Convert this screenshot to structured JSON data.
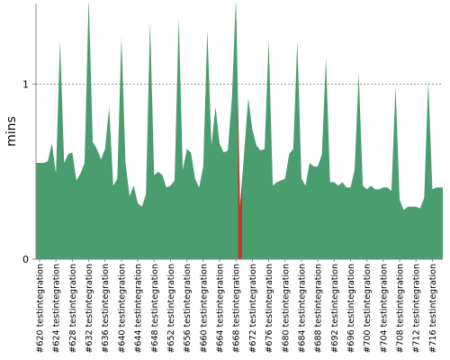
{
  "chart_data": {
    "type": "area",
    "y_label": "mins",
    "categories": [
      "#620 testintegration",
      null,
      null,
      null,
      "#624 testintegration",
      null,
      null,
      null,
      "#628 testintegration",
      null,
      null,
      null,
      "#632 testintegration",
      null,
      null,
      null,
      "#636 testintegration",
      null,
      null,
      null,
      "#640 testintegration",
      null,
      null,
      null,
      "#644 testintegration",
      null,
      null,
      null,
      "#648 testintegration",
      null,
      null,
      null,
      "#652 testintegration",
      null,
      null,
      null,
      "#656 testintegration",
      null,
      null,
      null,
      "#660 testintegration",
      null,
      null,
      null,
      "#664 testintegration",
      null,
      null,
      null,
      "#668 testintegration",
      null,
      null,
      null,
      "#672 testintegration",
      null,
      null,
      null,
      "#676 testintegration",
      null,
      null,
      null,
      "#680 testintegration",
      null,
      null,
      null,
      "#684 testintegration",
      null,
      null,
      null,
      "#688 testintegration",
      null,
      null,
      null,
      "#692 testintegration",
      null,
      null,
      null,
      "#696 testintegration",
      null,
      null,
      null,
      "#700 testintegration",
      null,
      null,
      null,
      "#704 testintegration",
      null,
      null,
      null,
      "#708 testintegration",
      null,
      null,
      null,
      "#712 testintegration",
      null,
      null,
      null,
      "#716 testintegration",
      null,
      null
    ],
    "series": [
      {
        "color": "#4a9d6e",
        "values": [
          0.55,
          0.55,
          0.56,
          0.66,
          0.49,
          1.25,
          0.55,
          0.6,
          0.61,
          0.45,
          0.49,
          0.55,
          1.5,
          0.67,
          0.63,
          0.57,
          0.63,
          0.87,
          0.42,
          0.46,
          1.27,
          0.55,
          0.36,
          0.42,
          0.32,
          0.3,
          0.37,
          1.36,
          0.48,
          0.5,
          0.48,
          0.41,
          0.42,
          0.45,
          1.38,
          0.51,
          0.63,
          0.61,
          0.46,
          0.41,
          0.53,
          1.31,
          0.65,
          0.87,
          0.66,
          0.61,
          0.62,
          0.92,
          1.5,
          0.3,
          0.61,
          0.92,
          0.74,
          0.65,
          0.62,
          0.63,
          1.25,
          0.42,
          0.44,
          0.45,
          0.46,
          0.6,
          0.63,
          1.25,
          0.46,
          0.42,
          0.55,
          0.53,
          0.53,
          0.6,
          1.15,
          0.44,
          0.44,
          0.42,
          0.44,
          0.41,
          0.41,
          0.51,
          1.06,
          0.42,
          0.4,
          0.42,
          0.4,
          0.4,
          0.41,
          0.41,
          0.39,
          0.99,
          0.34,
          0.28,
          0.3,
          0.3,
          0.3,
          0.29,
          0.35,
          1.02,
          0.4,
          0.41,
          0.41
        ]
      }
    ],
    "highlight": {
      "index": 49,
      "color": "#c0392b"
    },
    "ylim": [
      0,
      1.46
    ],
    "yticks": [
      0,
      1
    ],
    "grid": true
  }
}
